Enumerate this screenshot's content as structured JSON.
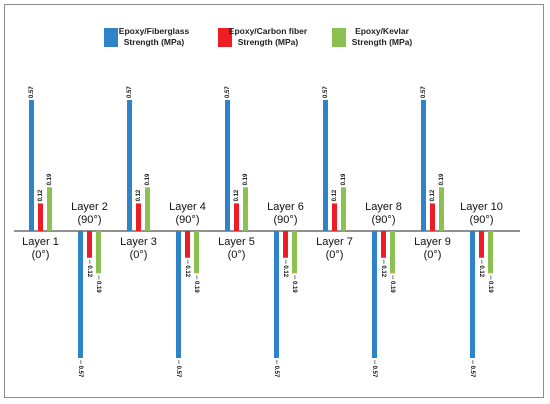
{
  "chart_data": {
    "type": "bar",
    "title": "",
    "xlabel": "",
    "ylabel": "",
    "ylim": [
      -0.57,
      0.57
    ],
    "grid": false,
    "legend_position": "top",
    "categories": [
      "Layer 1\n(0°)",
      "Layer 2\n(90°)",
      "Layer 3\n(0°)",
      "Layer 4\n(90°)",
      "Layer 5\n(0°)",
      "Layer 6\n(90°)",
      "Layer 7\n(0°)",
      "Layer 8\n(90°)",
      "Layer 9\n(0°)",
      "Layer 10\n(90°)"
    ],
    "series": [
      {
        "name": "Epoxy/Fiberglass\nStrength (MPa)",
        "color": "#2f83c8",
        "values": [
          0.57,
          -0.57,
          0.57,
          -0.57,
          0.57,
          -0.57,
          0.57,
          -0.57,
          0.57,
          -0.57
        ],
        "labels": [
          "0.57",
          "-- 0.57",
          "0.57",
          "-- 0.57",
          "0.57",
          "-- 0.57",
          "0.57",
          "-- 0.57",
          "0.57",
          "-- 0.57"
        ]
      },
      {
        "name": "Epoxy/Carbon fiber\nStrength (MPa)",
        "color": "#ee1c25",
        "values": [
          0.12,
          -0.12,
          0.12,
          -0.12,
          0.12,
          -0.12,
          0.12,
          -0.12,
          0.12,
          -0.12
        ],
        "labels": [
          "0.12",
          "-- 0.12",
          "0.12",
          "-- 0.12",
          "0.12",
          "-- 0.12",
          "0.12",
          "-- 0.12",
          "0.12",
          "-- 0.12"
        ]
      },
      {
        "name": "Epoxy/Kevlar\nStrength (MPa)",
        "color": "#8cc152",
        "values": [
          0.19,
          -0.19,
          0.19,
          -0.19,
          0.19,
          -0.19,
          0.19,
          -0.19,
          0.19,
          -0.19
        ],
        "labels": [
          "0.19",
          "-- 0.19",
          "0.19",
          "-- 0.19",
          "0.19",
          "-- 0.19",
          "0.19",
          "-- 0.19",
          "0.19",
          "-- 0.19"
        ]
      }
    ]
  }
}
